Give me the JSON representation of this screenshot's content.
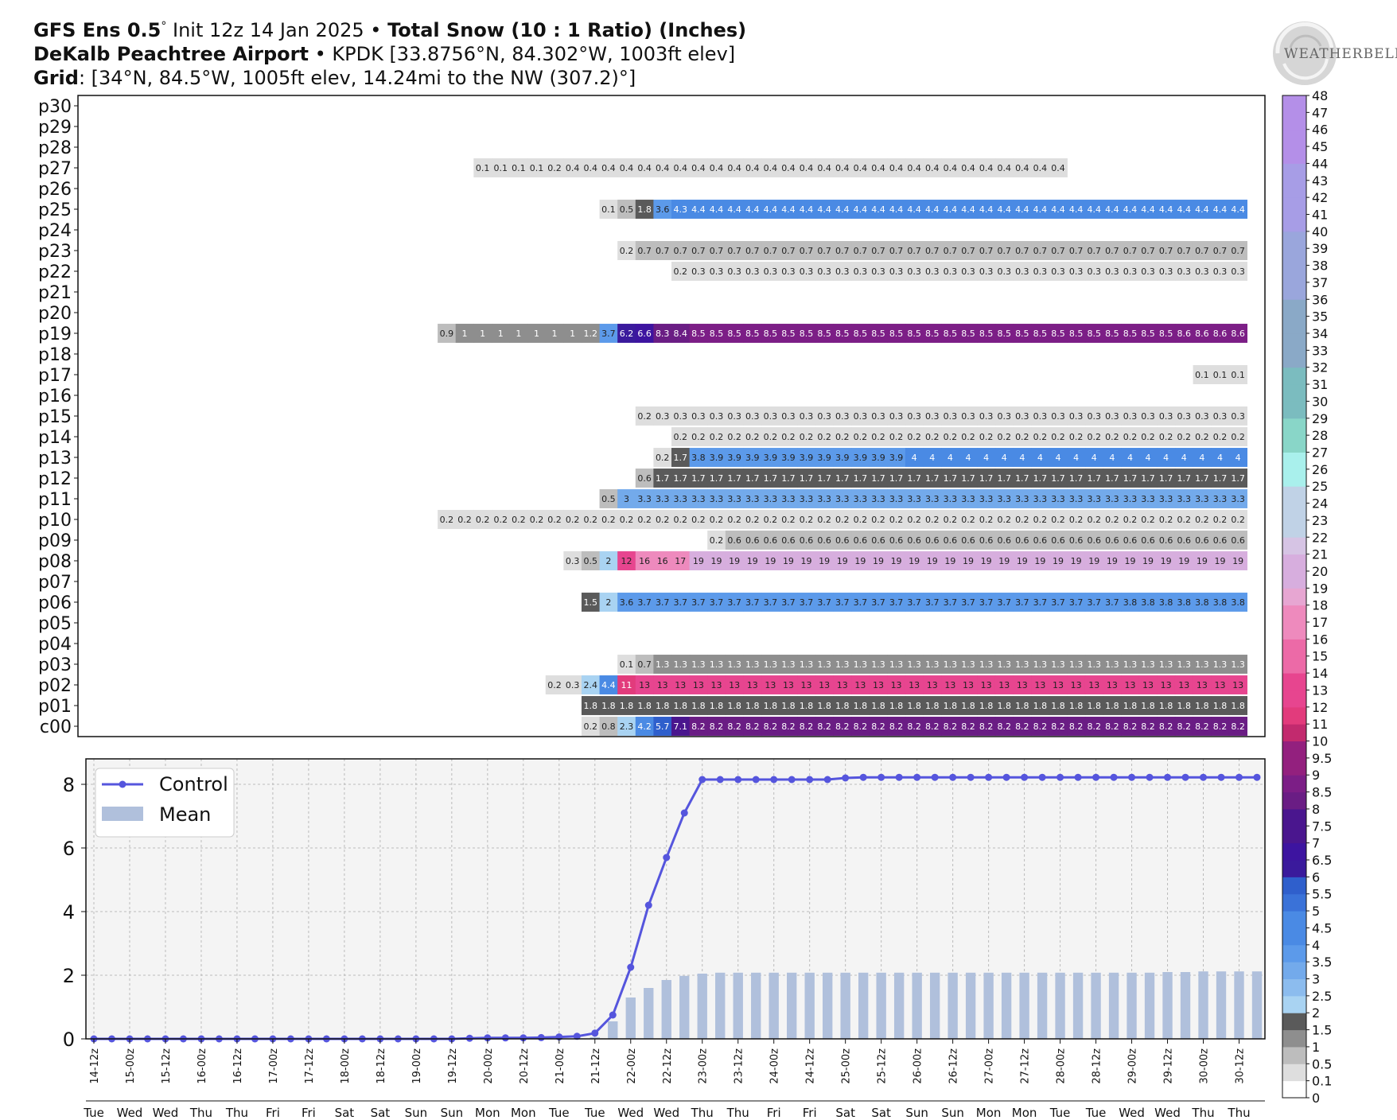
{
  "header": {
    "line1_model": "GFS Ens 0.5",
    "line1_deg": "°",
    "line1_init": " Init 12z 14 Jan 2025 • ",
    "line1_title": "Total Snow (10 : 1 Ratio) (Inches)",
    "line2_site": "DeKalb Peachtree Airport",
    "line2_rest": " • KPDK [33.8756°N, 84.302°W, 1003ft elev]",
    "line3_label": "Grid",
    "line3_rest": ": [34°N, 84.5°W, 1005ft elev, 14.24mi to the NW (307.2)°]"
  },
  "logo": {
    "text": "WEATHERBELL"
  },
  "colors": {
    "control_line": "#5555dd",
    "mean_bar": "#b0c0dc",
    "plot_bg": "#f4f4f4"
  },
  "chart_data": [
    {
      "type": "heatmap",
      "title": "Total Snow (10 : 1 Ratio) (Inches)",
      "rows": [
        "p30",
        "p29",
        "p28",
        "p27",
        "p26",
        "p25",
        "p24",
        "p23",
        "p22",
        "p21",
        "p20",
        "p19",
        "p18",
        "p17",
        "p16",
        "p15",
        "p14",
        "p13",
        "p12",
        "p11",
        "p10",
        "p09",
        "p08",
        "p07",
        "p06",
        "p05",
        "p04",
        "p03",
        "p02",
        "p01",
        "c00"
      ],
      "n_times": 66,
      "cells": {
        "p27": [
          [
            22,
            "0.1"
          ],
          [
            23,
            "0.1"
          ],
          [
            24,
            "0.1"
          ],
          [
            25,
            "0.1"
          ],
          [
            26,
            "0.2"
          ],
          [
            27,
            "0.4"
          ],
          [
            28,
            "0.4"
          ],
          [
            29,
            "0.4"
          ],
          [
            30,
            "0.4",
            25
          ]
        ],
        "p25": [
          [
            29,
            "0.1"
          ],
          [
            30,
            "0.5"
          ],
          [
            31,
            "1.8"
          ],
          [
            32,
            "3.6"
          ],
          [
            33,
            "4.3"
          ],
          [
            34,
            "4.4",
            31
          ]
        ],
        "p23": [
          [
            30,
            "0.2"
          ],
          [
            31,
            "0.7",
            34
          ]
        ],
        "p22": [
          [
            33,
            "0.2"
          ],
          [
            34,
            "0.3",
            31
          ]
        ],
        "p19": [
          [
            20,
            "0.9"
          ],
          [
            21,
            "1",
            7
          ],
          [
            28,
            "1.2"
          ],
          [
            29,
            "3.7"
          ],
          [
            30,
            "6.2"
          ],
          [
            31,
            "6.6"
          ],
          [
            32,
            "8.3"
          ],
          [
            33,
            "8.4"
          ],
          [
            34,
            "8.5",
            27
          ],
          [
            61,
            "8.6"
          ],
          [
            62,
            "8.6"
          ],
          [
            63,
            "8.6"
          ],
          [
            64,
            "8.6"
          ]
        ],
        "p17": [
          [
            62,
            "0.1"
          ],
          [
            63,
            "0.1"
          ],
          [
            64,
            "0.1"
          ]
        ],
        "p15": [
          [
            31,
            "0.2"
          ],
          [
            32,
            "0.3",
            33
          ]
        ],
        "p14": [
          [
            33,
            "0.2",
            32
          ]
        ],
        "p13": [
          [
            32,
            "0.2"
          ],
          [
            33,
            "1.7"
          ],
          [
            34,
            "3.8"
          ],
          [
            35,
            "3.9",
            11
          ],
          [
            46,
            "4",
            19
          ]
        ],
        "p12": [
          [
            31,
            "0.6"
          ],
          [
            32,
            "1.7",
            33
          ]
        ],
        "p11": [
          [
            29,
            "0.5"
          ],
          [
            30,
            "3"
          ],
          [
            31,
            "3.3",
            34
          ]
        ],
        "p10": [
          [
            20,
            "0.2",
            45
          ]
        ],
        "p09": [
          [
            35,
            "0.2"
          ],
          [
            36,
            "0.6",
            29
          ]
        ],
        "p08": [
          [
            27,
            "0.3"
          ],
          [
            28,
            "0.5"
          ],
          [
            29,
            "2"
          ],
          [
            30,
            "12"
          ],
          [
            31,
            "16"
          ],
          [
            32,
            "16"
          ],
          [
            33,
            "17"
          ],
          [
            34,
            "19",
            31
          ]
        ],
        "p06": [
          [
            28,
            "1.5"
          ],
          [
            29,
            "2"
          ],
          [
            30,
            "3.6"
          ],
          [
            31,
            "3.7",
            27
          ],
          [
            58,
            "3.8",
            7
          ]
        ],
        "p03": [
          [
            30,
            "0.1"
          ],
          [
            31,
            "0.7"
          ],
          [
            32,
            "1.3",
            33
          ]
        ],
        "p02": [
          [
            26,
            "0.2"
          ],
          [
            27,
            "0.3"
          ],
          [
            28,
            "2.4"
          ],
          [
            29,
            "4.4"
          ],
          [
            30,
            "11"
          ],
          [
            31,
            "13",
            34
          ]
        ],
        "p01": [
          [
            28,
            "1.8",
            37
          ]
        ],
        "c00": [
          [
            28,
            "0.2"
          ],
          [
            29,
            "0.8"
          ],
          [
            30,
            "2.3"
          ],
          [
            31,
            "4.2"
          ],
          [
            32,
            "5.7"
          ],
          [
            33,
            "7.1"
          ],
          [
            34,
            "8.2",
            31
          ]
        ]
      },
      "colorbar_labels": [
        "0",
        "0.1",
        "0.5",
        "1",
        "1.5",
        "2",
        "2.5",
        "3",
        "3.5",
        "4",
        "4.5",
        "5",
        "5.5",
        "6",
        "6.5",
        "7",
        "7.5",
        "8",
        "8.5",
        "9",
        "9.5",
        "10",
        "11",
        "12",
        "13",
        "14",
        "15",
        "16",
        "17",
        "18",
        "19",
        "20",
        "21",
        "22",
        "23",
        "24",
        "25",
        "26",
        "27",
        "28",
        "29",
        "30",
        "31",
        "32",
        "33",
        "34",
        "35",
        "36",
        "37",
        "38",
        "39",
        "40",
        "41",
        "42",
        "43",
        "44",
        "45",
        "46",
        "47",
        "48"
      ]
    },
    {
      "type": "line",
      "series": [
        {
          "name": "Control",
          "values": [
            0,
            0,
            0,
            0,
            0,
            0,
            0,
            0,
            0,
            0,
            0,
            0,
            0,
            0,
            0,
            0,
            0,
            0,
            0,
            0,
            0,
            0.02,
            0.03,
            0.03,
            0.03,
            0.04,
            0.06,
            0.08,
            0.18,
            0.75,
            2.25,
            4.2,
            5.7,
            7.1,
            8.15,
            8.15,
            8.15,
            8.15,
            8.15,
            8.15,
            8.15,
            8.15,
            8.2,
            8.22,
            8.22,
            8.22,
            8.22,
            8.22,
            8.22,
            8.22,
            8.22,
            8.22,
            8.22,
            8.22,
            8.22,
            8.22,
            8.22,
            8.22,
            8.22,
            8.22,
            8.22,
            8.22,
            8.22,
            8.22,
            8.22,
            8.22
          ]
        },
        {
          "name": "Mean",
          "type": "bar",
          "values": [
            0,
            0,
            0,
            0,
            0,
            0,
            0,
            0,
            0,
            0,
            0,
            0,
            0,
            0,
            0,
            0,
            0,
            0,
            0,
            0,
            0,
            0,
            0,
            0,
            0,
            0,
            0,
            0,
            0.05,
            0.55,
            1.3,
            1.6,
            1.85,
            1.98,
            2.05,
            2.08,
            2.08,
            2.08,
            2.08,
            2.08,
            2.08,
            2.08,
            2.08,
            2.08,
            2.08,
            2.08,
            2.08,
            2.08,
            2.08,
            2.08,
            2.08,
            2.08,
            2.08,
            2.08,
            2.08,
            2.08,
            2.08,
            2.08,
            2.08,
            2.08,
            2.1,
            2.1,
            2.12,
            2.12,
            2.12,
            2.12
          ]
        }
      ],
      "ylim": [
        0,
        8.8
      ],
      "yticks": [
        "0",
        "2",
        "4",
        "6",
        "8"
      ],
      "xtick_labels": [
        "14-12z",
        "15-00z",
        "15-12z",
        "16-00z",
        "16-12z",
        "17-00z",
        "17-12z",
        "18-00z",
        "18-12z",
        "19-00z",
        "19-12z",
        "20-00z",
        "20-12z",
        "21-00z",
        "21-12z",
        "22-00z",
        "22-12z",
        "23-00z",
        "23-12z",
        "24-00z",
        "24-12z",
        "25-00z",
        "25-12z",
        "26-00z",
        "26-12z",
        "27-00z",
        "27-12z",
        "28-00z",
        "28-12z",
        "29-00z",
        "29-12z",
        "30-00z",
        "30-12z"
      ],
      "day_labels": [
        "Tue",
        "Wed",
        "Wed",
        "Thu",
        "Thu",
        "Fri",
        "Fri",
        "Sat",
        "Sat",
        "Sun",
        "Sun",
        "Mon",
        "Mon",
        "Tue",
        "Tue",
        "Wed",
        "Wed",
        "Thu",
        "Thu",
        "Fri",
        "Fri",
        "Sat",
        "Sat",
        "Sun",
        "Sun",
        "Mon",
        "Mon",
        "Tue",
        "Tue",
        "Wed",
        "Wed",
        "Thu",
        "Thu"
      ],
      "grid": true,
      "legend": "top-left"
    }
  ]
}
